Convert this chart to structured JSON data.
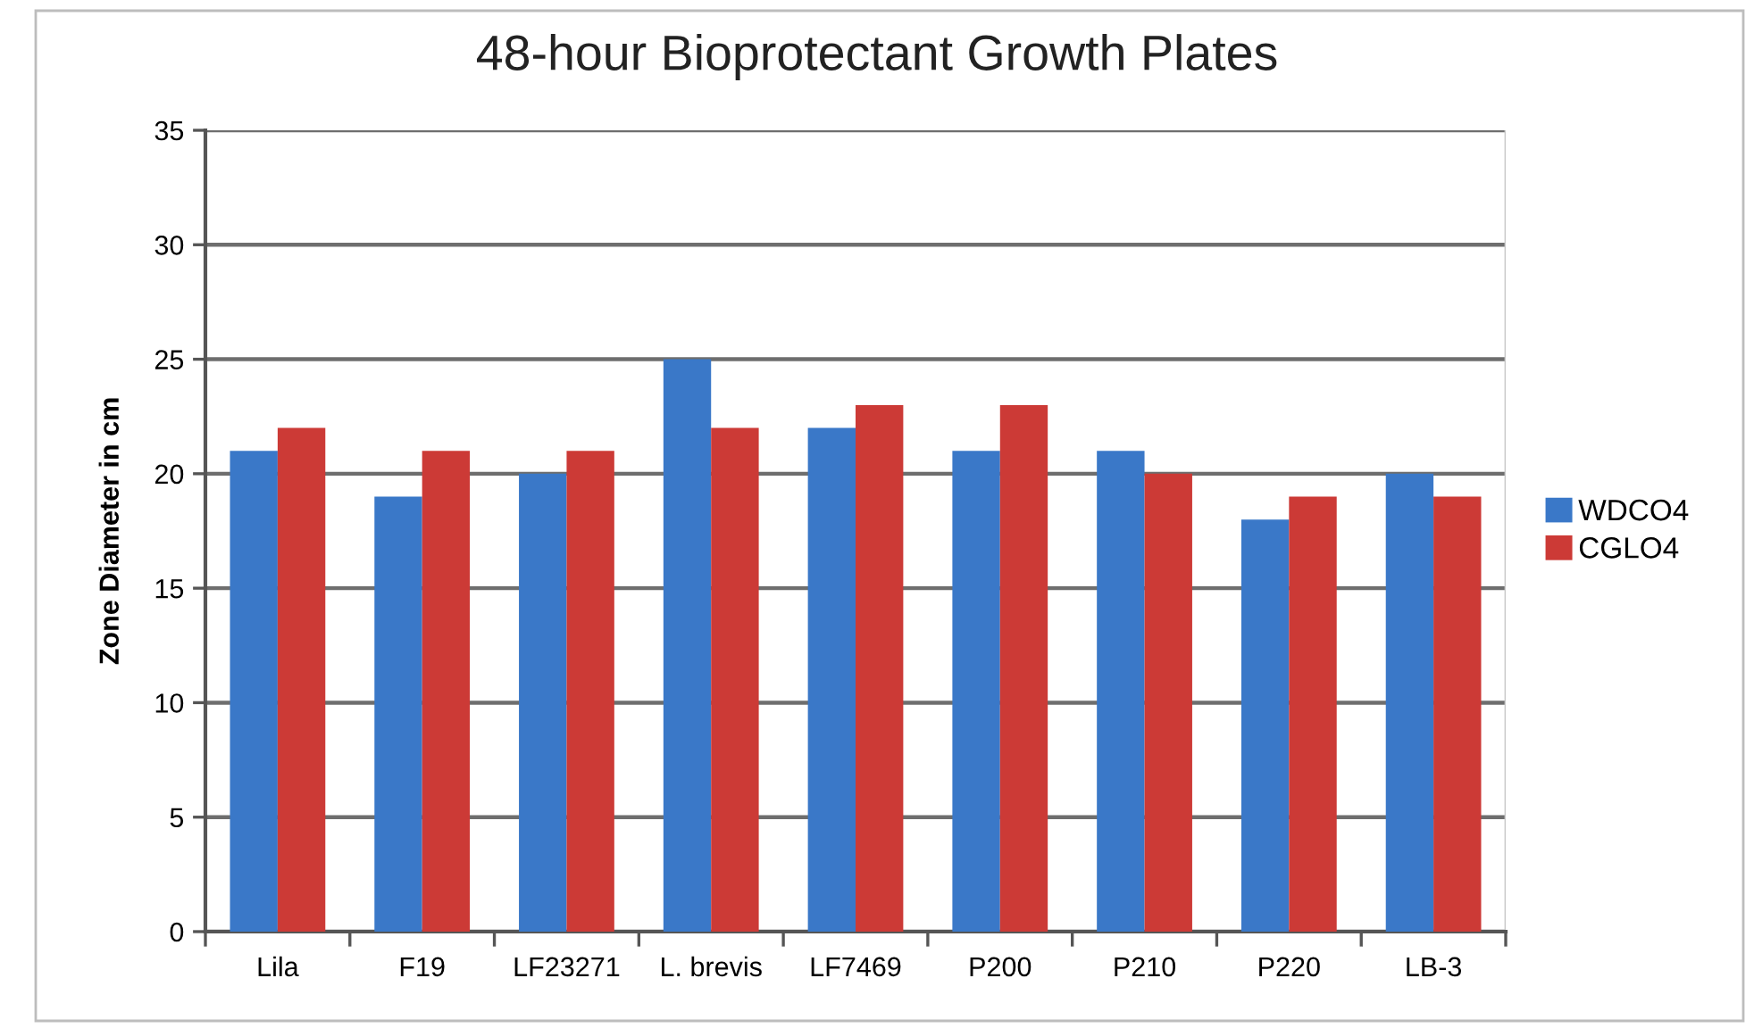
{
  "chart_data": {
    "type": "bar",
    "title": "48-hour Bioprotectant Growth Plates",
    "ylabel": "Zone Diameter in cm",
    "categories": [
      "Lila",
      "F19",
      "LF23271",
      "L. brevis",
      "LF7469",
      "P200",
      "P210",
      "P220",
      "LB-3"
    ],
    "series": [
      {
        "name": "WDCO4",
        "color": "#3a78c8",
        "values": [
          21,
          19,
          20,
          25,
          22,
          21,
          21,
          18,
          20
        ]
      },
      {
        "name": "CGLO4",
        "color": "#cc3a36",
        "values": [
          22,
          21,
          21,
          22,
          23,
          23,
          20,
          19,
          19
        ]
      }
    ],
    "ylim": [
      0,
      35
    ],
    "yticks": [
      0,
      5,
      10,
      15,
      20,
      25,
      30,
      35
    ],
    "grid": "y",
    "legend": "right"
  }
}
